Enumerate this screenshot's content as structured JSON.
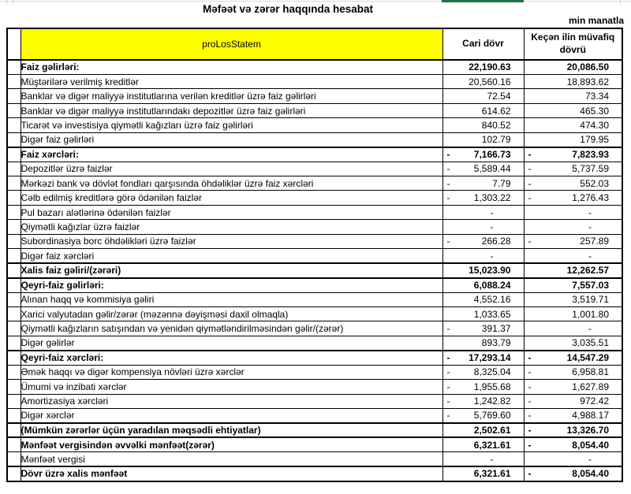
{
  "meta": {
    "title": "Məfəət və zərər haqqında hesabat",
    "unit_note": "min manatla"
  },
  "colors": {
    "header_fill": "#FFFF00",
    "selection_green": "#217346",
    "gridline_gray": "#D9D9D9",
    "table_border": "#000000"
  },
  "table": {
    "header": {
      "label": "proLosStatem",
      "col_current": "Cari dövr",
      "col_previous": "Keçən ilin müvafiq dövrü"
    },
    "rows": [
      {
        "label": "Faiz gəlirləri:",
        "bold": true,
        "current": "22,190.63",
        "previous": "20,086.50"
      },
      {
        "label": "Müştərilərə verilmiş kreditlər",
        "bold": false,
        "current": "20,560.16",
        "previous": "18,893.62"
      },
      {
        "label": "Banklar və digər maliyyə institutlarına verilən kreditlər üzrə faiz gəlirləri",
        "bold": false,
        "current": "72.54",
        "previous": "73.34"
      },
      {
        "label": "Banklar və digər maliyyə institutlarındakı depozitlər üzrə faiz gəlirləri",
        "bold": false,
        "current": "614.62",
        "previous": "465.30"
      },
      {
        "label": "Ticarət və investisiya qiymətli kağızları üzrə faiz gəlirləri",
        "bold": false,
        "current": "840.52",
        "previous": "474.30"
      },
      {
        "label": "Digər faiz gəlirləri",
        "bold": false,
        "current": "102.79",
        "previous": "179.95"
      },
      {
        "label": "Faiz xərcləri:",
        "bold": true,
        "current": "-7,166.73",
        "previous": "-7,823.93"
      },
      {
        "label": "Depozitlər üzrə faizlər",
        "bold": false,
        "current": "-5,589.44",
        "previous": "-5,737.59"
      },
      {
        "label": "Mərkəzi bank və dövlət fondları qarşısında öhdəliklər üzrə faiz xərcləri",
        "bold": false,
        "current": "-7.79",
        "previous": "-552.03"
      },
      {
        "label": "Cəlb edilmiş kreditlərə görə ödənilən faizlər",
        "bold": false,
        "current": "-1,303.22",
        "previous": "-1,276.43"
      },
      {
        "label": "Pul bazarı alətlərinə ödənilən faizlər",
        "bold": false,
        "current": "-",
        "previous": "-"
      },
      {
        "label": "Qiymətli kağızlar üzrə faizlər",
        "bold": false,
        "current": "-",
        "previous": "-"
      },
      {
        "label": "Subordinasiya borc öhdəlikləri üzrə faizlər",
        "bold": false,
        "current": "-266.28",
        "previous": "-257.89"
      },
      {
        "label": "Digər faiz xərcləri",
        "bold": false,
        "current": "-",
        "previous": "-"
      },
      {
        "label": "Xalis faiz gəliri/(zərəri)",
        "bold": true,
        "current": "15,023.90",
        "previous": "12,262.57"
      },
      {
        "label": "Qeyri-faiz gəlirləri:",
        "bold": true,
        "current": "6,088.24",
        "previous": "7,557.03"
      },
      {
        "label": "Alınan haqq və kommisiya gəliri",
        "bold": false,
        "current": "4,552.16",
        "previous": "3,519.71"
      },
      {
        "label": "Xarici valyutadan gəlir/zərər (məzənnə dəyişməsi daxil olmaqla)",
        "bold": false,
        "current": "1,033.65",
        "previous": "1,001.80"
      },
      {
        "label": "Qiymətli kağızların satışından və yenidən qiymətləndirilməsindən gəlir/(zərər)",
        "bold": false,
        "current": "-391.37",
        "previous": "-"
      },
      {
        "label": "Digər gəlirlər",
        "bold": false,
        "current": "893.79",
        "previous": "3,035.51"
      },
      {
        "label": "Qeyri-faiz xərcləri:",
        "bold": true,
        "current": "-17,293.14",
        "previous": "-14,547.29"
      },
      {
        "label": "Əmək haqqı və digər kompensiya növləri üzrə xərclər",
        "bold": false,
        "current": "-8,325.04",
        "previous": "-6,958.81"
      },
      {
        "label": "Ümumi və inzibati xərclər",
        "bold": false,
        "current": "-1,955.68",
        "previous": "-1,627.89"
      },
      {
        "label": "Amortizasiya xərcləri",
        "bold": false,
        "current": "-1,242.82",
        "previous": "-972.42"
      },
      {
        "label": "Digər xərclər",
        "bold": false,
        "current": "-5,769.60",
        "previous": "-4,988.17"
      },
      {
        "label": "(Mümkün zərərlər üçün yaradılan məqsədli ehtiyatlar)",
        "bold": true,
        "current": "2,502.61",
        "previous": "-13,326.70"
      },
      {
        "label": "Mənfəət vergisindən əvvəlki mənfəət(zərər)",
        "bold": true,
        "current": "6,321.61",
        "previous": "-8,054.40"
      },
      {
        "label": "Mənfəət vergisi",
        "bold": false,
        "current": "-",
        "previous": "-"
      },
      {
        "label": "Dövr üzrə xalis mənfəət",
        "bold": true,
        "current": "6,321.61",
        "previous": "-8,054.40"
      }
    ]
  }
}
